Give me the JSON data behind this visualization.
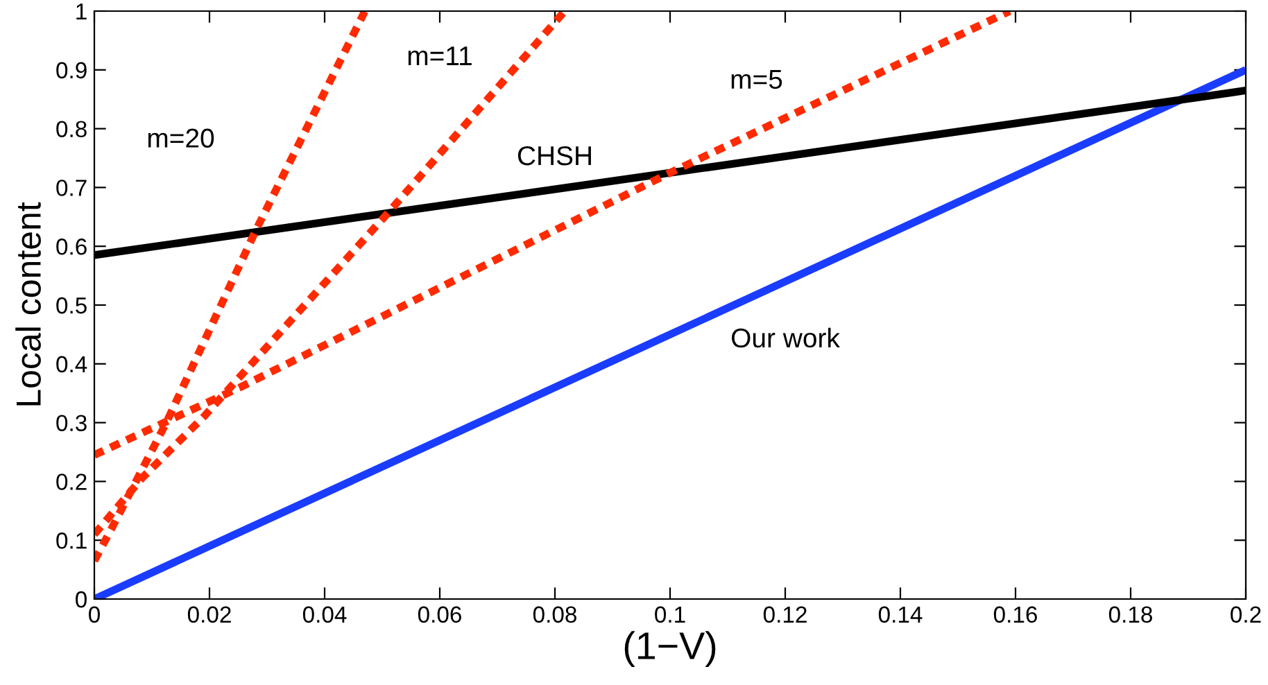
{
  "chart_data": {
    "type": "line",
    "xlabel": "(1−V)",
    "ylabel": "Local content",
    "xlim": [
      0,
      0.2
    ],
    "ylim": [
      0,
      1
    ],
    "xticks": [
      0,
      0.02,
      0.04,
      0.06,
      0.08,
      0.1,
      0.12,
      0.14,
      0.16,
      0.18,
      {
        "value": 0.2,
        "label": "0.2"
      }
    ],
    "yticks": [
      0,
      0.1,
      0.2,
      0.3,
      0.4,
      0.5,
      0.6,
      0.7,
      0.8,
      0.9,
      1
    ],
    "grid": false,
    "series": [
      {
        "color": "#1a3cff",
        "line_style": "solid",
        "x": [
          0,
          0.2
        ],
        "values": [
          0,
          0.9
        ]
      },
      {
        "color": "#000000",
        "line_style": "solid",
        "x": [
          0,
          0.2
        ],
        "values": [
          0.585,
          0.865
        ]
      },
      {
        "color": "#ff2a00",
        "line_style": "dotted",
        "x": [
          0,
          0.0253,
          0.1,
          0.159
        ],
        "values": [
          0.245,
          0.36,
          0.725,
          1.0
        ]
      },
      {
        "color": "#ff2a00",
        "line_style": "dotted",
        "x": [
          0,
          0.0084,
          0.019,
          0.0504,
          0.0817
        ],
        "values": [
          0.11,
          0.207,
          0.31,
          0.65,
          1.0
        ]
      },
      {
        "color": "#ff2a00",
        "line_style": "dotted",
        "x": [
          0,
          0.003,
          0.0125,
          0.028,
          0.047
        ],
        "values": [
          0.065,
          0.12,
          0.3,
          0.626,
          1.0
        ]
      }
    ],
    "annotations": [
      "m=20",
      "m=11",
      "m=5",
      "CHSH",
      "Our work"
    ]
  }
}
